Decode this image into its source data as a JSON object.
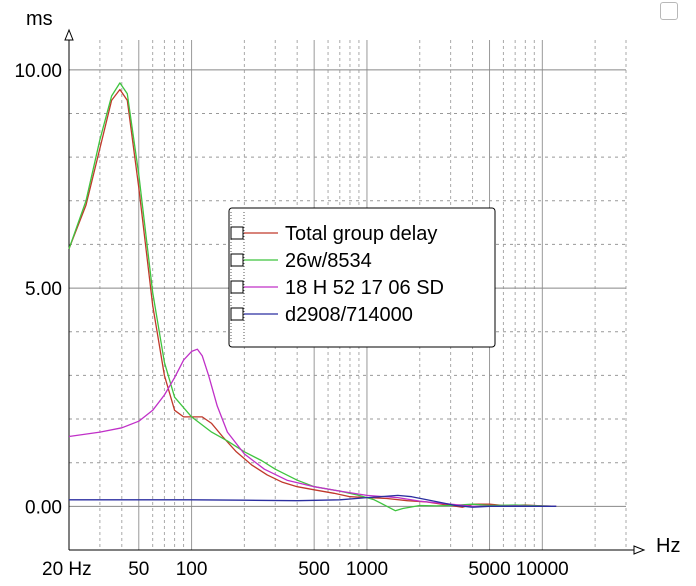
{
  "chart_data": {
    "type": "line",
    "xscale": "log",
    "xlim": [
      20,
      30000
    ],
    "ylim": [
      -1.0,
      10.5
    ],
    "xlabel": "Hz",
    "ylabel": "ms",
    "grid": true,
    "legend_position": "center-right",
    "y_ticks": [
      {
        "value": 10,
        "label": "10.00"
      },
      {
        "value": 5,
        "label": "5.00"
      },
      {
        "value": 0,
        "label": "0.00"
      }
    ],
    "x_ticks": [
      {
        "value": 20,
        "label": "20 Hz"
      },
      {
        "value": 50,
        "label": "50"
      },
      {
        "value": 100,
        "label": "100"
      },
      {
        "value": 500,
        "label": "500"
      },
      {
        "value": 1000,
        "label": "1000"
      },
      {
        "value": 5000,
        "label": "5000"
      },
      {
        "value": 10000,
        "label": "10000"
      }
    ],
    "series": [
      {
        "name": "Total group delay",
        "color": "#c0392b",
        "points": [
          [
            20,
            5.9
          ],
          [
            25,
            6.9
          ],
          [
            30,
            8.2
          ],
          [
            35,
            9.3
          ],
          [
            39,
            9.55
          ],
          [
            43,
            9.3
          ],
          [
            50,
            7.3
          ],
          [
            60,
            4.6
          ],
          [
            70,
            3.0
          ],
          [
            80,
            2.2
          ],
          [
            90,
            2.05
          ],
          [
            100,
            2.05
          ],
          [
            115,
            2.05
          ],
          [
            130,
            1.9
          ],
          [
            150,
            1.6
          ],
          [
            180,
            1.25
          ],
          [
            220,
            0.95
          ],
          [
            270,
            0.72
          ],
          [
            330,
            0.55
          ],
          [
            400,
            0.45
          ],
          [
            500,
            0.38
          ],
          [
            650,
            0.3
          ],
          [
            800,
            0.22
          ],
          [
            1000,
            0.2
          ],
          [
            1300,
            0.18
          ],
          [
            1700,
            0.13
          ],
          [
            2200,
            0.1
          ],
          [
            3000,
            0.02
          ],
          [
            3500,
            -0.02
          ],
          [
            4000,
            0.05
          ],
          [
            5000,
            0.05
          ],
          [
            6000,
            0.02
          ],
          [
            8000,
            0.03
          ],
          [
            10000,
            0.01
          ],
          [
            12000,
            0.0
          ]
        ]
      },
      {
        "name": "26w/8534",
        "color": "#3fc43f",
        "points": [
          [
            20,
            5.9
          ],
          [
            25,
            7.0
          ],
          [
            30,
            8.4
          ],
          [
            35,
            9.4
          ],
          [
            39,
            9.7
          ],
          [
            43,
            9.45
          ],
          [
            50,
            7.6
          ],
          [
            60,
            4.9
          ],
          [
            70,
            3.3
          ],
          [
            80,
            2.5
          ],
          [
            100,
            2.05
          ],
          [
            130,
            1.7
          ],
          [
            160,
            1.5
          ],
          [
            200,
            1.25
          ],
          [
            250,
            1.05
          ],
          [
            300,
            0.85
          ],
          [
            400,
            0.6
          ],
          [
            500,
            0.45
          ],
          [
            700,
            0.35
          ],
          [
            900,
            0.25
          ],
          [
            1100,
            0.15
          ],
          [
            1300,
            0.0
          ],
          [
            1450,
            -0.1
          ],
          [
            1600,
            -0.05
          ],
          [
            2000,
            0.02
          ],
          [
            2500,
            0.01
          ],
          [
            3000,
            0.02
          ],
          [
            4000,
            0.05
          ],
          [
            5000,
            0.02
          ],
          [
            7000,
            0.03
          ],
          [
            10000,
            0.01
          ],
          [
            12000,
            0.0
          ]
        ]
      },
      {
        "name": "18 H 52 17 06 SD",
        "color": "#c030c8",
        "points": [
          [
            20,
            1.6
          ],
          [
            30,
            1.7
          ],
          [
            40,
            1.8
          ],
          [
            50,
            1.95
          ],
          [
            60,
            2.2
          ],
          [
            70,
            2.55
          ],
          [
            80,
            2.95
          ],
          [
            90,
            3.35
          ],
          [
            100,
            3.55
          ],
          [
            108,
            3.6
          ],
          [
            115,
            3.45
          ],
          [
            125,
            3.0
          ],
          [
            140,
            2.3
          ],
          [
            160,
            1.7
          ],
          [
            200,
            1.2
          ],
          [
            260,
            0.85
          ],
          [
            350,
            0.6
          ],
          [
            500,
            0.45
          ],
          [
            700,
            0.35
          ],
          [
            1000,
            0.25
          ],
          [
            1500,
            0.2
          ],
          [
            2000,
            0.12
          ],
          [
            2500,
            0.08
          ],
          [
            3000,
            0.05
          ],
          [
            4000,
            0.0
          ],
          [
            5000,
            0.0
          ],
          [
            7000,
            0.01
          ],
          [
            10000,
            0.0
          ],
          [
            12000,
            0.0
          ]
        ]
      },
      {
        "name": "d2908/714000",
        "color": "#2b2fa0",
        "points": [
          [
            20,
            0.15
          ],
          [
            50,
            0.15
          ],
          [
            100,
            0.15
          ],
          [
            200,
            0.14
          ],
          [
            400,
            0.13
          ],
          [
            700,
            0.15
          ],
          [
            1000,
            0.2
          ],
          [
            1200,
            0.22
          ],
          [
            1500,
            0.25
          ],
          [
            1800,
            0.22
          ],
          [
            2200,
            0.15
          ],
          [
            2700,
            0.08
          ],
          [
            3200,
            0.02
          ],
          [
            4000,
            -0.02
          ],
          [
            5000,
            0.0
          ],
          [
            7000,
            0.0
          ],
          [
            10000,
            0.0
          ],
          [
            12000,
            0.0
          ]
        ]
      }
    ]
  }
}
